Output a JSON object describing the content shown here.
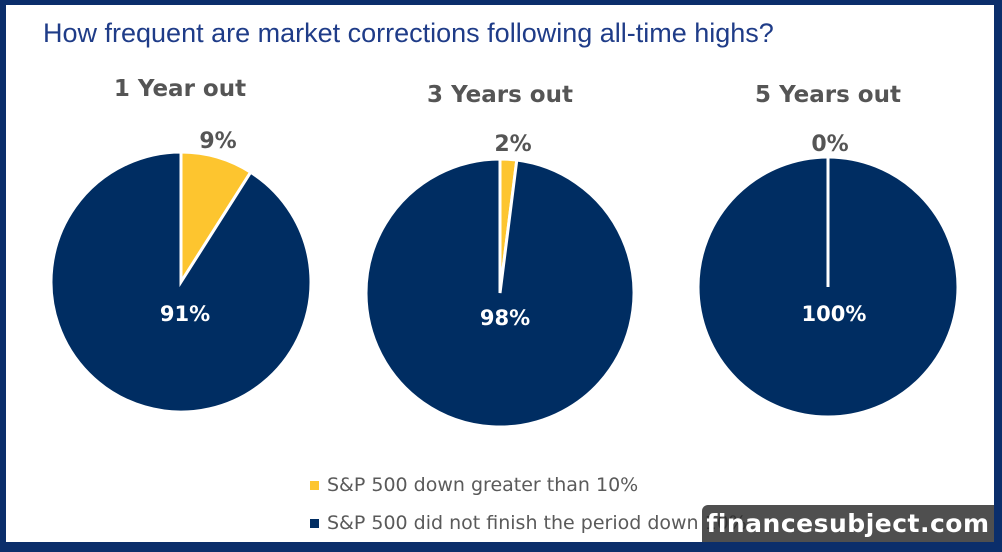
{
  "chart_data": [
    {
      "type": "pie",
      "title": "1 Year out",
      "slices": [
        {
          "name": "S&P 500 down greater than 10%",
          "value": 9,
          "label": "9%",
          "color": "#fdc52f"
        },
        {
          "name": "S&P 500 did not finish the period down 10%",
          "value": 91,
          "label": "91%",
          "color": "#002d62"
        }
      ]
    },
    {
      "type": "pie",
      "title": "3 Years out",
      "slices": [
        {
          "name": "S&P 500 down greater than 10%",
          "value": 2,
          "label": "2%",
          "color": "#fdc52f"
        },
        {
          "name": "S&P 500 did not finish the period down 10%",
          "value": 98,
          "label": "98%",
          "color": "#002d62"
        }
      ]
    },
    {
      "type": "pie",
      "title": "5 Years out",
      "slices": [
        {
          "name": "S&P 500 down greater than 10%",
          "value": 0,
          "label": "0%",
          "color": "#fdc52f"
        },
        {
          "name": "S&P 500 did not finish the period down 10%",
          "value": 100,
          "label": "100%",
          "color": "#002d62"
        }
      ]
    }
  ],
  "header": {
    "title": "How frequent are market corrections following all-time highs?"
  },
  "legend": {
    "items": [
      {
        "label": "S&P 500 down greater than 10%",
        "color": "#fdc52f"
      },
      {
        "label": "S&P 500 did not finish the period down 10%",
        "color": "#002d62"
      }
    ]
  },
  "watermark": {
    "text": "financesubject.com"
  }
}
